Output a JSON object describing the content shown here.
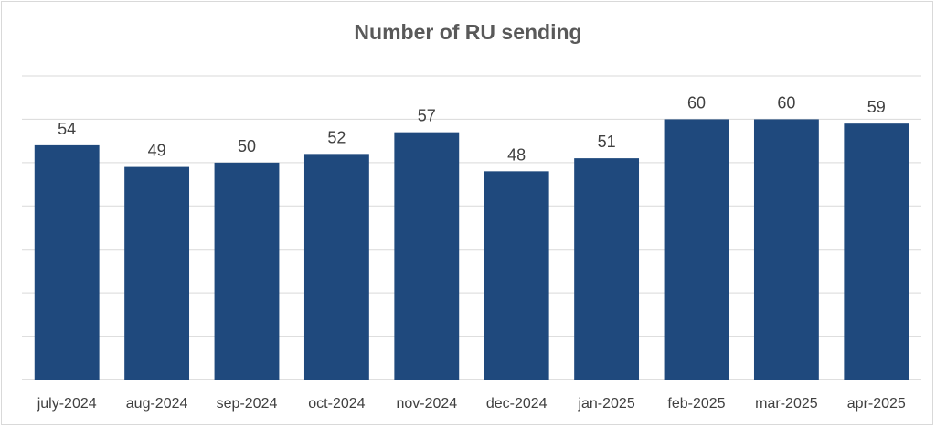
{
  "chart_data": {
    "type": "bar",
    "title": "Number of RU sending",
    "categories": [
      "july-2024",
      "aug-2024",
      "sep-2024",
      "oct-2024",
      "nov-2024",
      "dec-2024",
      "jan-2025",
      "feb-2025",
      "mar-2025",
      "apr-2025"
    ],
    "values": [
      54,
      49,
      50,
      52,
      57,
      48,
      51,
      60,
      60,
      59
    ],
    "ylim": [
      0,
      70
    ],
    "grid": true,
    "legend": "none",
    "colors": {
      "bar": "#1f497d",
      "grid": "#d9d9d9",
      "axis": "#bfbfbf"
    }
  }
}
